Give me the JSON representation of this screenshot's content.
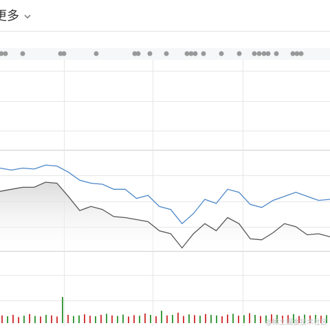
{
  "header": {
    "title": "更多"
  },
  "watermark": "@稀土掘金技术社区",
  "chart_data": {
    "type": "line",
    "ylim": [
      0,
      100
    ],
    "series": [
      {
        "color": "#4a86c8",
        "values": [
          82,
          80,
          82,
          81,
          85,
          84,
          78,
          70,
          67,
          66,
          61,
          61,
          52,
          55,
          44,
          41,
          27,
          37,
          51,
          47,
          61,
          58,
          46,
          43,
          50,
          54,
          58,
          54,
          50,
          51
        ]
      },
      {
        "color": "#555555",
        "fill": true,
        "values": [
          59,
          61,
          63,
          63,
          68,
          67,
          54,
          40,
          44,
          41,
          34,
          33,
          31,
          29,
          20,
          17,
          3,
          17,
          27,
          20,
          33,
          27,
          12,
          11,
          18,
          27,
          24,
          16,
          17,
          14
        ]
      }
    ],
    "volume": {
      "ylim": [
        0,
        100
      ],
      "values": [
        28,
        25,
        30,
        22,
        27,
        33,
        26,
        24,
        30,
        28,
        24,
        95,
        30,
        26,
        28,
        32,
        27,
        25,
        30,
        34,
        28,
        26,
        31,
        24,
        29,
        27,
        35,
        30,
        25,
        45,
        28,
        30,
        38,
        26,
        32,
        29,
        27,
        33,
        30,
        28,
        25,
        31,
        34,
        27,
        29,
        36,
        30,
        26,
        28,
        32,
        30,
        27,
        29,
        33,
        26,
        31,
        28,
        30,
        27,
        29
      ],
      "colors": [
        "#d23b3b",
        "#3d9a3d",
        "#d23b3b",
        "#d23b3b",
        "#3d9a3d",
        "#d23b3b",
        "#3d9a3d",
        "#d23b3b",
        "#3d9a3d",
        "#d23b3b",
        "#d23b3b",
        "#3d9a3d",
        "#d23b3b",
        "#3d9a3d",
        "#3d9a3d",
        "#d23b3b",
        "#d23b3b",
        "#3d9a3d",
        "#d23b3b",
        "#3d9a3d",
        "#d23b3b",
        "#3d9a3d",
        "#3d9a3d",
        "#d23b3b",
        "#d23b3b",
        "#3d9a3d",
        "#d23b3b",
        "#3d9a3d",
        "#d23b3b",
        "#3d9a3d",
        "#d23b3b",
        "#3d9a3d",
        "#d23b3b",
        "#d23b3b",
        "#3d9a3d",
        "#d23b3b",
        "#3d9a3d",
        "#d23b3b",
        "#3d9a3d",
        "#3d9a3d",
        "#d23b3b",
        "#d23b3b",
        "#3d9a3d",
        "#d23b3b",
        "#3d9a3d",
        "#d23b3b",
        "#3d9a3d",
        "#d23b3b",
        "#3d9a3d",
        "#d23b3b",
        "#3d9a3d",
        "#d23b3b",
        "#d23b3b",
        "#3d9a3d",
        "#d23b3b",
        "#3d9a3d",
        "#d23b3b",
        "#3d9a3d",
        "#d23b3b",
        "#3d9a3d"
      ]
    }
  }
}
